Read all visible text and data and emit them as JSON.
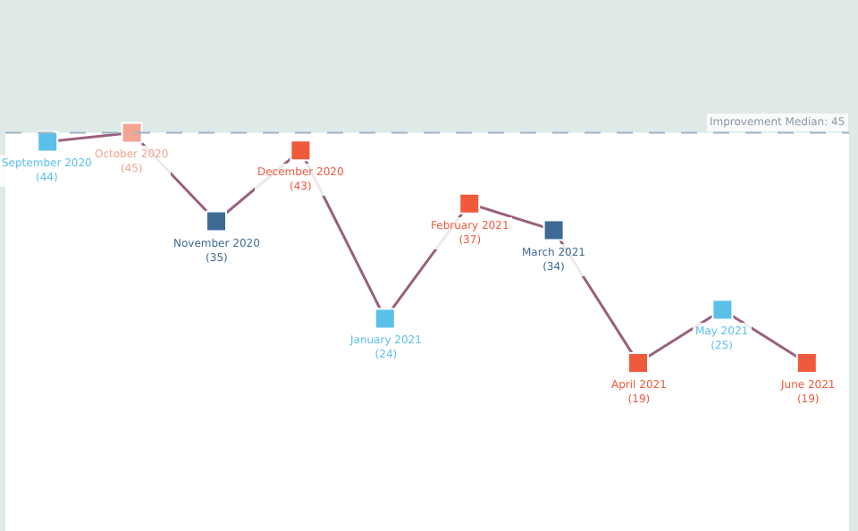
{
  "chart_data": {
    "type": "line",
    "categories": [
      "September 2020",
      "October 2020",
      "November 2020",
      "December 2020",
      "January 2021",
      "February 2021",
      "March 2021",
      "April 2021",
      "May 2021",
      "June 2021"
    ],
    "series": [
      {
        "color": "#9a607e",
        "values": [
          44,
          45,
          35,
          43,
          24,
          37,
          34,
          19,
          25,
          19
        ],
        "colors": [
          "#5bc0e8",
          "#f2a594",
          "#3f6a94",
          "#f05a3c",
          "#5bc0e8",
          "#f05a3c",
          "#3f6a94",
          "#f05a3c",
          "#5bc0e8",
          "#f05a3c"
        ],
        "value_labels": [
          "(44)",
          "(45)",
          "(35)",
          "(43)",
          "(24)",
          "(37)",
          "(34)",
          "(19)",
          "(25)",
          "(19)"
        ]
      }
    ],
    "relative": false,
    "ylim": [
      0,
      60
    ],
    "tick_labels": false,
    "marker": "square",
    "grid": false,
    "ref_lines": [
      {
        "axis": "y",
        "value": 45,
        "label": "Improvement Median: 45",
        "color": "#a0b4c8",
        "line_style": "dashed"
      }
    ],
    "bands": [
      {
        "axis": "y",
        "from": 45,
        "to": 60,
        "color": "#dfeae7"
      }
    ]
  }
}
